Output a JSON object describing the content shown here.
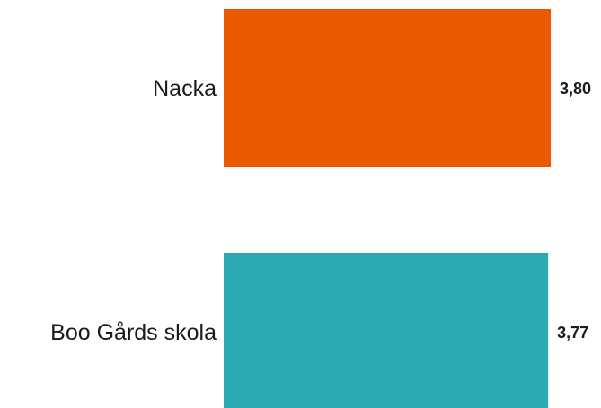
{
  "chart_data": {
    "type": "bar",
    "orientation": "horizontal",
    "categories": [
      "Nacka",
      "Boo Gårds skola"
    ],
    "values": [
      3.8,
      3.77
    ],
    "value_labels": [
      "3,80",
      "3,77"
    ],
    "colors": [
      "#ec5a00",
      "#2aa9b0"
    ],
    "title": "",
    "xlabel": "",
    "ylabel": "",
    "grid": false,
    "legend": "none"
  }
}
